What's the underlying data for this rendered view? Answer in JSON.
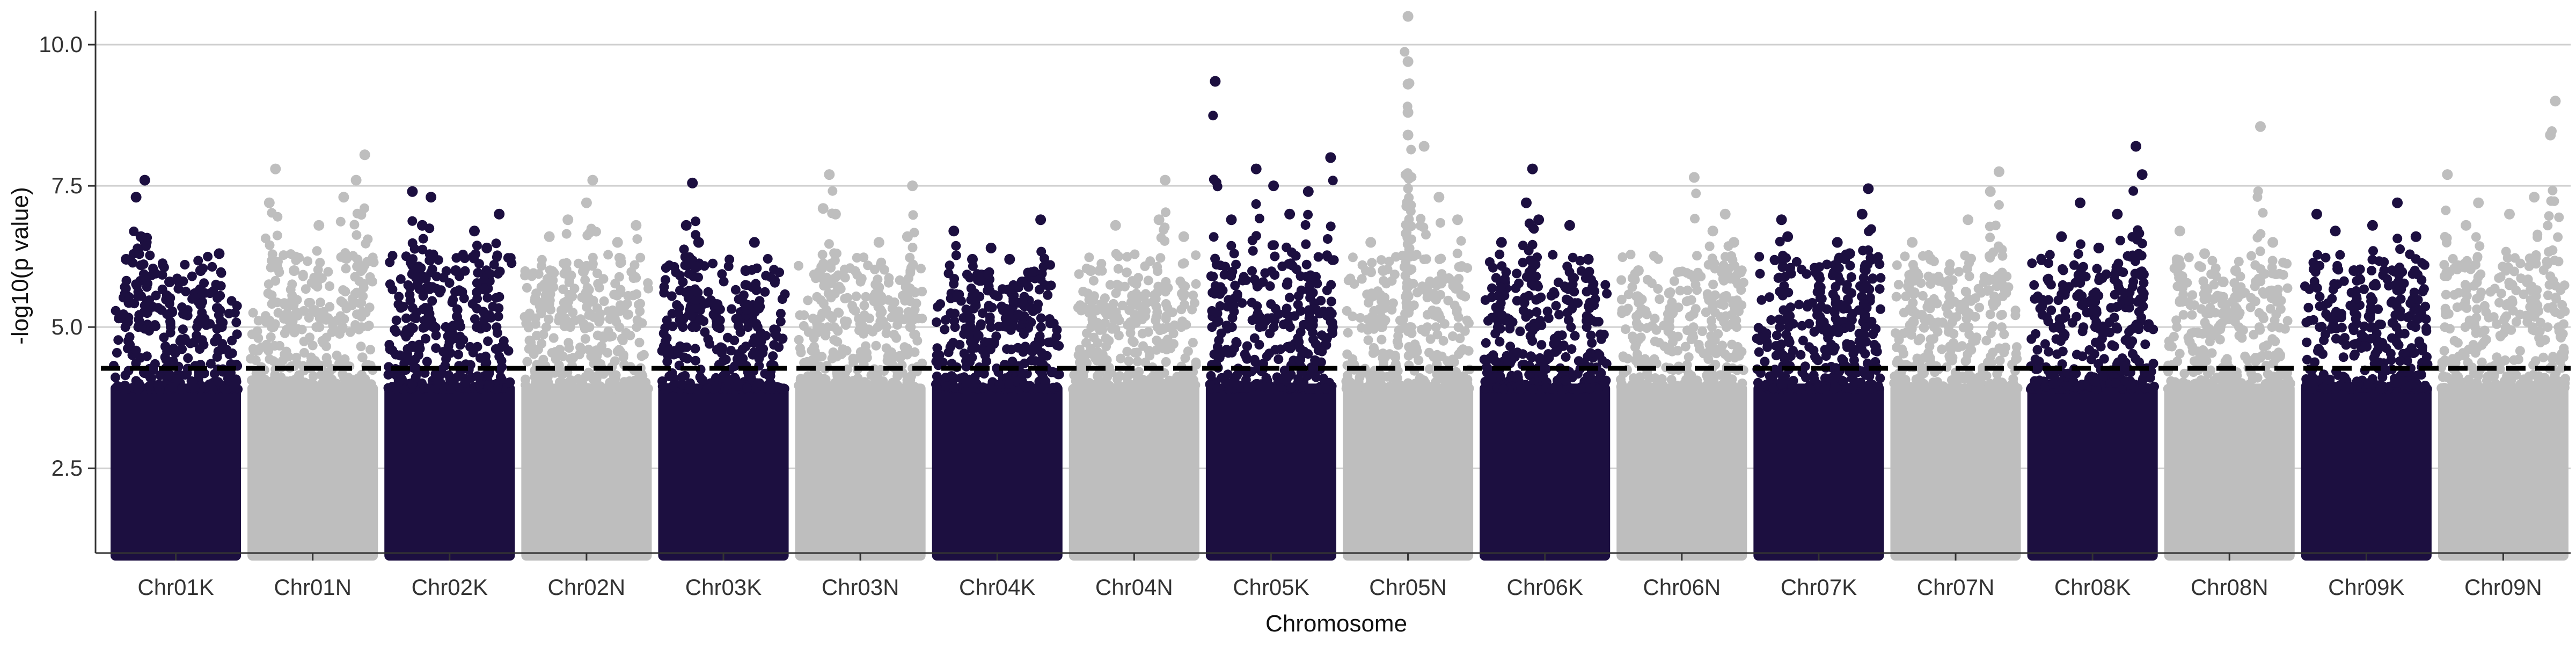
{
  "chart_data": {
    "type": "scatter",
    "subtype": "manhattan",
    "title": "",
    "xlabel": "Chromosome",
    "ylabel": "-log10(p value)",
    "ylim": [
      1.0,
      10.6
    ],
    "y_ticks": [
      2.5,
      5.0,
      7.5,
      10.0
    ],
    "y_tick_labels": [
      "2.5",
      "5.0",
      "7.5",
      "10.0"
    ],
    "grid": "horizontal major only",
    "legend": "none",
    "threshold": 4.27,
    "threshold_style": "dashed black line",
    "colors": {
      "odd": "#1c0f40",
      "even": "#bebebe",
      "grid": "#d0d0d0",
      "threshold": "#000000"
    },
    "categories": [
      "Chr01K",
      "Chr01N",
      "Chr02K",
      "Chr02N",
      "Chr03K",
      "Chr03N",
      "Chr04K",
      "Chr04N",
      "Chr05K",
      "Chr05N",
      "Chr06K",
      "Chr06N",
      "Chr07K",
      "Chr07N",
      "Chr08K",
      "Chr08N",
      "Chr09K",
      "Chr09N"
    ],
    "chromosomes": [
      {
        "name": "Chr01K",
        "color": "#1c0f40",
        "max": 7.6,
        "peaks": [
          [
            0.25,
            7.6
          ],
          [
            0.18,
            7.3
          ],
          [
            0.22,
            6.6
          ],
          [
            0.45,
            5.8
          ],
          [
            0.7,
            6.0
          ],
          [
            0.85,
            6.3
          ],
          [
            0.1,
            6.2
          ]
        ]
      },
      {
        "name": "Chr01N",
        "color": "#bebebe",
        "max": 8.05,
        "peaks": [
          [
            0.2,
            7.8
          ],
          [
            0.15,
            7.2
          ],
          [
            0.75,
            7.3
          ],
          [
            0.92,
            8.05
          ],
          [
            0.85,
            7.6
          ],
          [
            0.55,
            6.8
          ],
          [
            0.35,
            6.0
          ]
        ]
      },
      {
        "name": "Chr02K",
        "color": "#1c0f40",
        "max": 7.4,
        "peaks": [
          [
            0.2,
            7.4
          ],
          [
            0.35,
            7.3
          ],
          [
            0.28,
            6.8
          ],
          [
            0.7,
            6.7
          ],
          [
            0.9,
            7.0
          ],
          [
            0.8,
            6.4
          ],
          [
            0.55,
            6.0
          ]
        ]
      },
      {
        "name": "Chr02N",
        "color": "#bebebe",
        "max": 7.6,
        "peaks": [
          [
            0.55,
            7.6
          ],
          [
            0.5,
            7.2
          ],
          [
            0.35,
            6.9
          ],
          [
            0.75,
            6.5
          ],
          [
            0.2,
            6.6
          ],
          [
            0.9,
            6.8
          ]
        ]
      },
      {
        "name": "Chr03K",
        "color": "#1c0f40",
        "max": 7.55,
        "peaks": [
          [
            0.25,
            7.55
          ],
          [
            0.2,
            6.8
          ],
          [
            0.3,
            6.5
          ],
          [
            0.75,
            6.5
          ],
          [
            0.68,
            6.0
          ],
          [
            0.45,
            5.4
          ]
        ]
      },
      {
        "name": "Chr03N",
        "color": "#bebebe",
        "max": 7.7,
        "peaks": [
          [
            0.25,
            7.7
          ],
          [
            0.2,
            7.1
          ],
          [
            0.3,
            7.0
          ],
          [
            0.65,
            6.5
          ],
          [
            0.92,
            7.5
          ],
          [
            0.88,
            6.6
          ]
        ]
      },
      {
        "name": "Chr04K",
        "color": "#1c0f40",
        "max": 6.9,
        "peaks": [
          [
            0.15,
            6.7
          ],
          [
            0.45,
            6.4
          ],
          [
            0.6,
            6.2
          ],
          [
            0.85,
            6.9
          ],
          [
            0.3,
            6.2
          ],
          [
            0.7,
            5.8
          ]
        ]
      },
      {
        "name": "Chr04N",
        "color": "#bebebe",
        "max": 7.6,
        "peaks": [
          [
            0.75,
            7.6
          ],
          [
            0.7,
            6.9
          ],
          [
            0.35,
            6.8
          ],
          [
            0.9,
            6.6
          ],
          [
            0.15,
            6.0
          ],
          [
            0.5,
            5.8
          ]
        ]
      },
      {
        "name": "Chr05K",
        "color": "#1c0f40",
        "max": 9.35,
        "peaks": [
          [
            0.05,
            9.35
          ],
          [
            0.38,
            7.8
          ],
          [
            0.52,
            7.5
          ],
          [
            0.98,
            8.0
          ],
          [
            0.8,
            7.4
          ],
          [
            0.18,
            6.9
          ],
          [
            0.65,
            7.0
          ]
        ]
      },
      {
        "name": "Chr05N",
        "color": "#bebebe",
        "max": 10.5,
        "peaks": [
          [
            0.5,
            10.5
          ],
          [
            0.5,
            9.7
          ],
          [
            0.5,
            9.3
          ],
          [
            0.5,
            8.8
          ],
          [
            0.5,
            8.4
          ],
          [
            0.63,
            8.2
          ],
          [
            0.75,
            7.3
          ],
          [
            0.2,
            6.5
          ],
          [
            0.9,
            6.9
          ],
          [
            0.3,
            6.0
          ]
        ]
      },
      {
        "name": "Chr06K",
        "color": "#1c0f40",
        "max": 7.8,
        "peaks": [
          [
            0.4,
            7.8
          ],
          [
            0.35,
            7.2
          ],
          [
            0.45,
            6.9
          ],
          [
            0.7,
            6.8
          ],
          [
            0.15,
            6.5
          ],
          [
            0.85,
            6.2
          ]
        ]
      },
      {
        "name": "Chr06N",
        "color": "#bebebe",
        "max": 7.65,
        "peaks": [
          [
            0.6,
            7.65
          ],
          [
            0.85,
            7.0
          ],
          [
            0.75,
            6.7
          ],
          [
            0.15,
            6.0
          ],
          [
            0.4,
            5.6
          ],
          [
            0.92,
            6.5
          ]
        ]
      },
      {
        "name": "Chr07K",
        "color": "#1c0f40",
        "max": 7.45,
        "peaks": [
          [
            0.9,
            7.45
          ],
          [
            0.85,
            7.0
          ],
          [
            0.2,
            6.9
          ],
          [
            0.25,
            6.6
          ],
          [
            0.65,
            6.5
          ],
          [
            0.75,
            6.3
          ],
          [
            0.5,
            5.9
          ]
        ]
      },
      {
        "name": "Chr07N",
        "color": "#bebebe",
        "max": 7.75,
        "peaks": [
          [
            0.85,
            7.75
          ],
          [
            0.78,
            7.4
          ],
          [
            0.6,
            6.9
          ],
          [
            0.15,
            6.5
          ],
          [
            0.3,
            6.2
          ],
          [
            0.45,
            6.0
          ]
        ]
      },
      {
        "name": "Chr08K",
        "color": "#1c0f40",
        "max": 8.2,
        "peaks": [
          [
            0.85,
            8.2
          ],
          [
            0.9,
            7.7
          ],
          [
            0.4,
            7.2
          ],
          [
            0.7,
            7.0
          ],
          [
            0.25,
            6.6
          ],
          [
            0.55,
            6.4
          ]
        ]
      },
      {
        "name": "Chr08N",
        "color": "#bebebe",
        "max": 8.55,
        "peaks": [
          [
            0.75,
            8.55
          ],
          [
            0.1,
            6.7
          ],
          [
            0.3,
            6.3
          ],
          [
            0.55,
            6.0
          ],
          [
            0.85,
            6.5
          ],
          [
            0.45,
            5.8
          ]
        ]
      },
      {
        "name": "Chr09K",
        "color": "#1c0f40",
        "max": 7.2,
        "peaks": [
          [
            0.1,
            7.0
          ],
          [
            0.25,
            6.7
          ],
          [
            0.55,
            6.8
          ],
          [
            0.75,
            7.2
          ],
          [
            0.9,
            6.6
          ],
          [
            0.4,
            6.0
          ]
        ]
      },
      {
        "name": "Chr09N",
        "color": "#bebebe",
        "max": 9.0,
        "peaks": [
          [
            0.92,
            9.0
          ],
          [
            0.88,
            8.4
          ],
          [
            0.05,
            7.7
          ],
          [
            0.3,
            7.2
          ],
          [
            0.55,
            7.0
          ],
          [
            0.75,
            7.3
          ],
          [
            0.2,
            6.8
          ]
        ]
      }
    ]
  }
}
